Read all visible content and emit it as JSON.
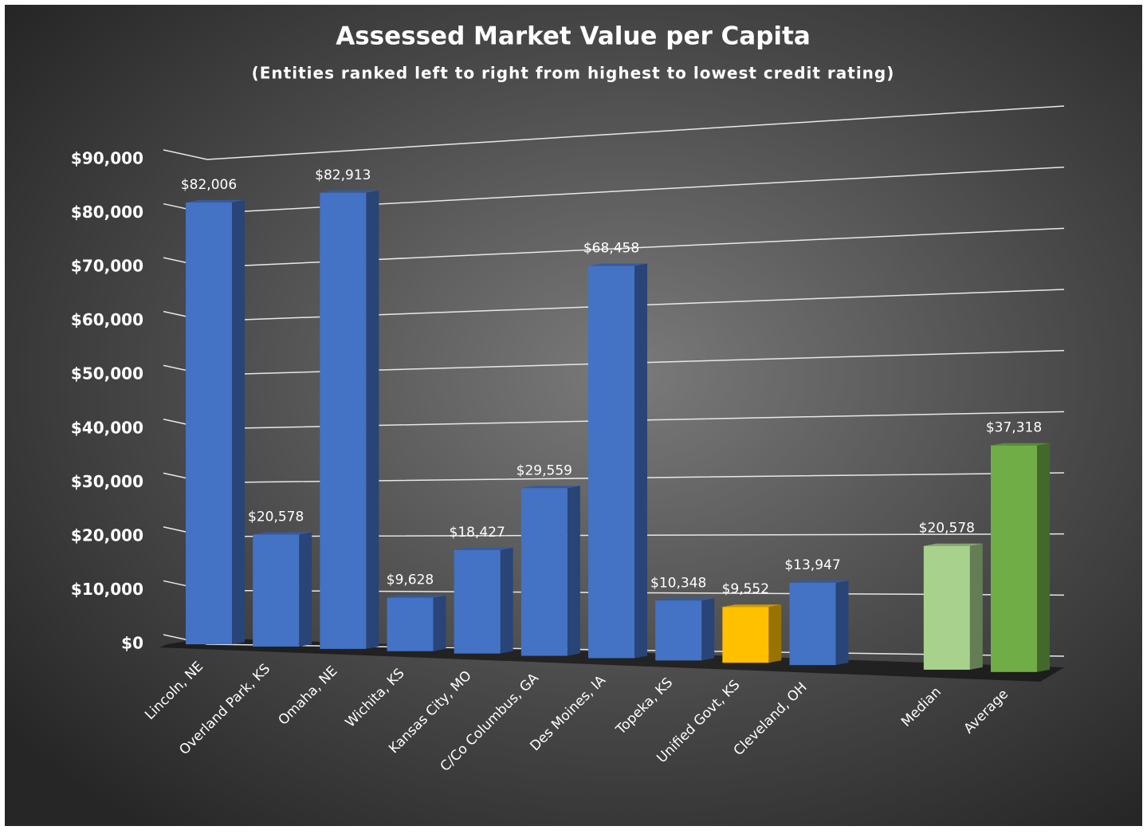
{
  "chart_data": {
    "type": "bar3d",
    "title": "Assessed Market Value per Capita",
    "subtitle": "(Entities ranked left to right from highest to lowest credit rating)",
    "categories": [
      "Lincoln, NE",
      "Overland Park, KS",
      "Omaha, NE",
      "Wichita, KS",
      "Kansas City, MO",
      "C/Co Columbus, GA",
      "Des Moines, IA",
      "Topeka, KS",
      "Unified Govt, KS",
      "Cleveland, OH",
      null,
      "Median",
      "Average"
    ],
    "values": [
      82006,
      20578,
      82913,
      9628,
      18427,
      29559,
      68458,
      10348,
      9552,
      13947,
      null,
      20578,
      37318
    ],
    "value_labels": [
      "$82,006",
      "$20,578",
      "$82,913",
      "$9,628",
      "$18,427",
      "$29,559",
      "$68,458",
      "$10,348",
      "$9,552",
      "$13,947",
      null,
      "$20,578",
      "$37,318"
    ],
    "colors": [
      "#4472c4",
      "#4472c4",
      "#4472c4",
      "#4472c4",
      "#4472c4",
      "#4472c4",
      "#4472c4",
      "#4472c4",
      "#ffc000",
      "#4472c4",
      null,
      "#a9d18e",
      "#70ad47"
    ],
    "ylim": [
      0,
      90000
    ],
    "yticks": [
      {
        "value": 0,
        "label": "$0"
      },
      {
        "value": 10000,
        "label": "$10,000"
      },
      {
        "value": 20000,
        "label": "$20,000"
      },
      {
        "value": 30000,
        "label": "$30,000"
      },
      {
        "value": 40000,
        "label": "$40,000"
      },
      {
        "value": 50000,
        "label": "$50,000"
      },
      {
        "value": 60000,
        "label": "$60,000"
      },
      {
        "value": 70000,
        "label": "$70,000"
      },
      {
        "value": 80000,
        "label": "$80,000"
      },
      {
        "value": 90000,
        "label": "$90,000"
      }
    ],
    "grid": true
  }
}
